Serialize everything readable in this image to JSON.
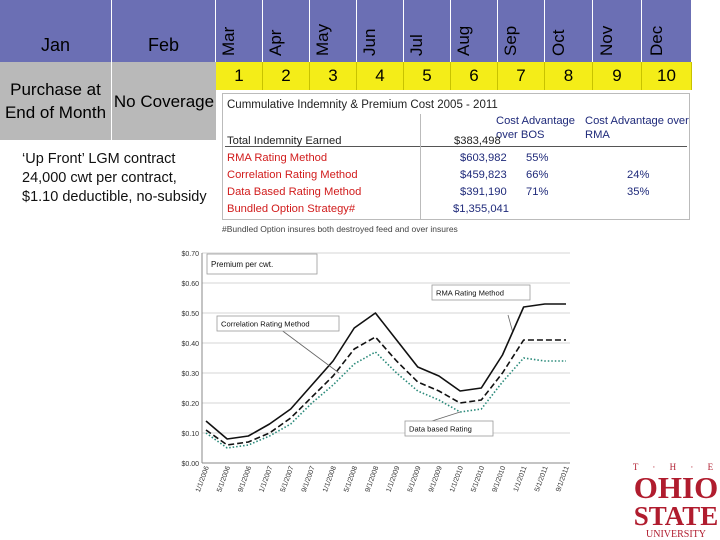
{
  "header": {
    "months": [
      "Jan",
      "Feb",
      "Mar",
      "Apr",
      "May",
      "Jun",
      "Jul",
      "Aug",
      "Sep",
      "Oct",
      "Nov",
      "Dec"
    ],
    "numbers": [
      "1",
      "2",
      "3",
      "4",
      "5",
      "6",
      "7",
      "8",
      "9",
      "10"
    ],
    "purchase_label": "Purchase at End of Month",
    "no_coverage_label": "No Coverage"
  },
  "note": "‘Up Front’ LGM contract 24,000 cwt per contract, $1.10 deductible, no-subsidy",
  "table": {
    "title": "Cummulative Indemnity & Premium Cost 2005 - 2011",
    "col1_header": "Cost Advantage over BOS",
    "col2_header": "Cost Advantage over RMA",
    "rows": [
      {
        "label": "Total Indemnity Earned",
        "value": "$383,498",
        "adv_bos": "",
        "adv_rma": ""
      },
      {
        "label": "RMA Rating Method",
        "value": "$603,982",
        "adv_bos": "55%",
        "adv_rma": ""
      },
      {
        "label": "Correlation Rating Method",
        "value": "$459,823",
        "adv_bos": "66%",
        "adv_rma": "24%"
      },
      {
        "label": "Data Based Rating Method",
        "value": "$391,190",
        "adv_bos": "71%",
        "adv_rma": "35%"
      },
      {
        "label": "Bundled Option Strategy#",
        "value": "$1,355,041",
        "adv_bos": "",
        "adv_rma": ""
      }
    ],
    "footnote": "#Bundled Option insures both destroyed feed and over insures"
  },
  "logo": {
    "top": "T · H · E",
    "line1": "OHIO",
    "line2": "STATE",
    "bottom": "UNIVERSITY"
  },
  "colors": {
    "month_bar": "#6b6fb4",
    "number_bar": "#f4ed18",
    "grey_panel": "#b9b9b9",
    "table_text": "#1f2a7a",
    "table_red": "#d11c1c",
    "osu_red": "#b01c2e"
  },
  "chart_data": {
    "type": "line",
    "title": "Premium per cwt.",
    "ylim": [
      0,
      0.7
    ],
    "yticks": [
      "$0.00",
      "$0.10",
      "$0.20",
      "$0.30",
      "$0.40",
      "$0.50",
      "$0.60",
      "$0.70"
    ],
    "x": [
      "1/1/2006",
      "5/1/2006",
      "9/1/2006",
      "1/1/2007",
      "5/1/2007",
      "9/1/2007",
      "1/1/2008",
      "5/1/2008",
      "9/1/2008",
      "1/1/2009",
      "5/1/2009",
      "9/1/2009",
      "1/1/2010",
      "5/1/2010",
      "9/1/2010",
      "1/1/2011",
      "5/1/2011",
      "9/1/2011"
    ],
    "series": [
      {
        "name": "RMA Rating Method",
        "style": "solid",
        "color": "#111111",
        "values": [
          0.14,
          0.08,
          0.09,
          0.13,
          0.18,
          0.26,
          0.34,
          0.45,
          0.5,
          0.41,
          0.32,
          0.29,
          0.24,
          0.25,
          0.36,
          0.52,
          0.53,
          0.53
        ]
      },
      {
        "name": "Correlation Rating Method",
        "style": "dashed",
        "color": "#111111",
        "values": [
          0.11,
          0.06,
          0.07,
          0.1,
          0.15,
          0.22,
          0.29,
          0.38,
          0.42,
          0.34,
          0.27,
          0.24,
          0.2,
          0.21,
          0.3,
          0.41,
          0.41,
          0.41
        ]
      },
      {
        "name": "Data based Rating",
        "style": "dotted",
        "color": "#2a8a7a",
        "values": [
          0.1,
          0.05,
          0.06,
          0.09,
          0.13,
          0.2,
          0.26,
          0.33,
          0.37,
          0.3,
          0.24,
          0.21,
          0.17,
          0.18,
          0.27,
          0.35,
          0.34,
          0.34
        ]
      }
    ],
    "annotations": [
      "RMA Rating Method",
      "Correlation Rating Method",
      "Data based Rating"
    ]
  }
}
